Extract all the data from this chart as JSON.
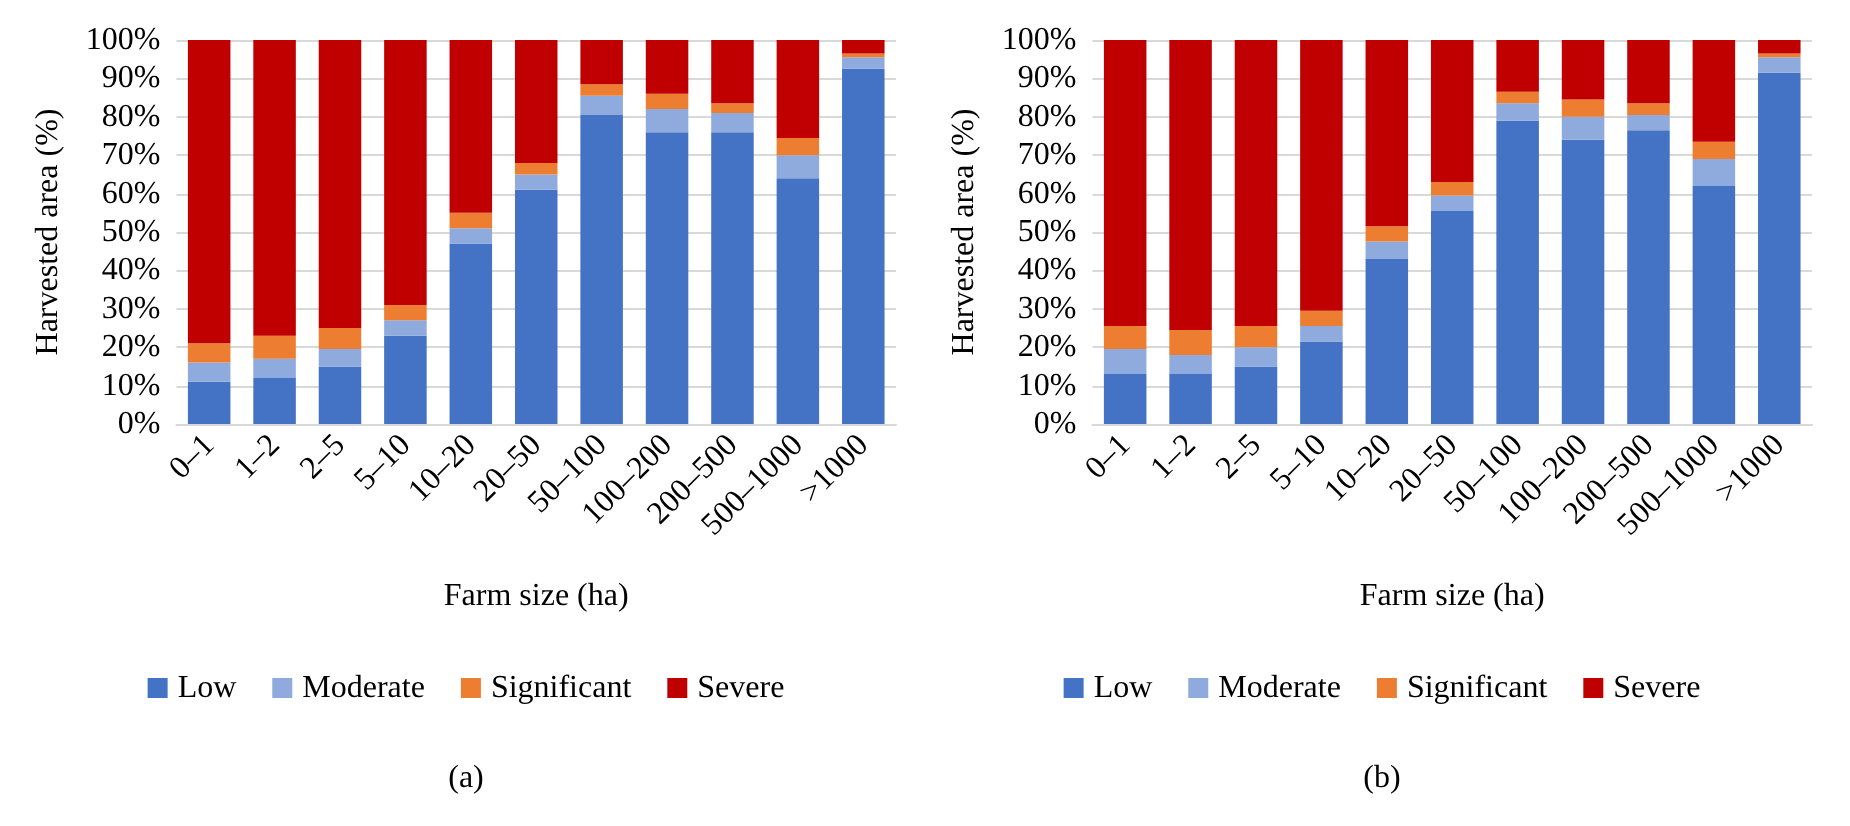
{
  "chart_data": [
    {
      "type": "bar",
      "stacked": true,
      "xlabel": "Farm size (ha)",
      "ylabel": "Harvested area (%)",
      "categories": [
        "0–1",
        "1–2",
        "2–5",
        "5–10",
        "10–20",
        "20–50",
        "50–100",
        "100–200",
        "200–500",
        "500–1000",
        ">1000"
      ],
      "series": [
        {
          "name": "Low",
          "color": "#4472c4",
          "values": [
            11,
            12,
            15,
            23,
            47,
            61,
            80.5,
            76,
            76,
            64,
            92.5
          ]
        },
        {
          "name": "Moderate",
          "color": "#8faadc",
          "values": [
            5,
            5,
            4.5,
            4,
            4,
            4,
            5,
            6,
            5,
            6,
            3
          ]
        },
        {
          "name": "Significant",
          "color": "#ed7d31",
          "values": [
            5,
            6,
            5.5,
            4,
            4,
            3,
            3,
            4,
            2.5,
            4.5,
            1
          ]
        },
        {
          "name": "Severe",
          "color": "#c00000",
          "values": [
            79,
            77,
            75,
            69,
            45,
            32,
            11.5,
            14,
            16.5,
            25.5,
            3.5
          ]
        }
      ],
      "ylim": [
        0,
        100
      ],
      "yticks": [
        {
          "value": 0,
          "label": "0%"
        },
        {
          "value": 10,
          "label": "10%"
        },
        {
          "value": 20,
          "label": "20%"
        },
        {
          "value": 30,
          "label": "30%"
        },
        {
          "value": 40,
          "label": "40%"
        },
        {
          "value": 50,
          "label": "50%"
        },
        {
          "value": 60,
          "label": "60%"
        },
        {
          "value": 70,
          "label": "70%"
        },
        {
          "value": 80,
          "label": "80%"
        },
        {
          "value": 90,
          "label": "90%"
        },
        {
          "value": 100,
          "label": "100%"
        }
      ],
      "grid": "y",
      "legend": "bottom",
      "annotations": [
        "(a)"
      ]
    },
    {
      "type": "bar",
      "stacked": true,
      "xlabel": "Farm size (ha)",
      "ylabel": "Harvested area (%)",
      "categories": [
        "0–1",
        "1–2",
        "2–5",
        "5–10",
        "10–20",
        "20–50",
        "50–100",
        "100–200",
        "200–500",
        "500–1000",
        ">1000"
      ],
      "series": [
        {
          "name": "Low",
          "color": "#4472c4",
          "values": [
            13,
            13,
            15,
            21.5,
            43,
            55.5,
            79,
            74,
            76.5,
            62,
            91.5
          ]
        },
        {
          "name": "Moderate",
          "color": "#8faadc",
          "values": [
            6.5,
            5,
            5,
            4,
            4.5,
            4,
            4.5,
            6,
            4,
            7,
            4
          ]
        },
        {
          "name": "Significant",
          "color": "#ed7d31",
          "values": [
            6,
            6.5,
            5.5,
            4,
            4,
            3.5,
            3,
            4.5,
            3,
            4.5,
            1
          ]
        },
        {
          "name": "Severe",
          "color": "#c00000",
          "values": [
            74.5,
            75.5,
            74.5,
            70.5,
            48.5,
            37,
            13.5,
            15.5,
            16.5,
            26.5,
            3.5
          ]
        }
      ],
      "ylim": [
        0,
        100
      ],
      "yticks": [
        {
          "value": 0,
          "label": "0%"
        },
        {
          "value": 10,
          "label": "10%"
        },
        {
          "value": 20,
          "label": "20%"
        },
        {
          "value": 30,
          "label": "30%"
        },
        {
          "value": 40,
          "label": "40%"
        },
        {
          "value": 50,
          "label": "50%"
        },
        {
          "value": 60,
          "label": "60%"
        },
        {
          "value": 70,
          "label": "70%"
        },
        {
          "value": 80,
          "label": "80%"
        },
        {
          "value": 90,
          "label": "90%"
        },
        {
          "value": 100,
          "label": "100%"
        }
      ],
      "grid": "y",
      "legend": "bottom",
      "annotations": [
        "(b)"
      ]
    }
  ]
}
